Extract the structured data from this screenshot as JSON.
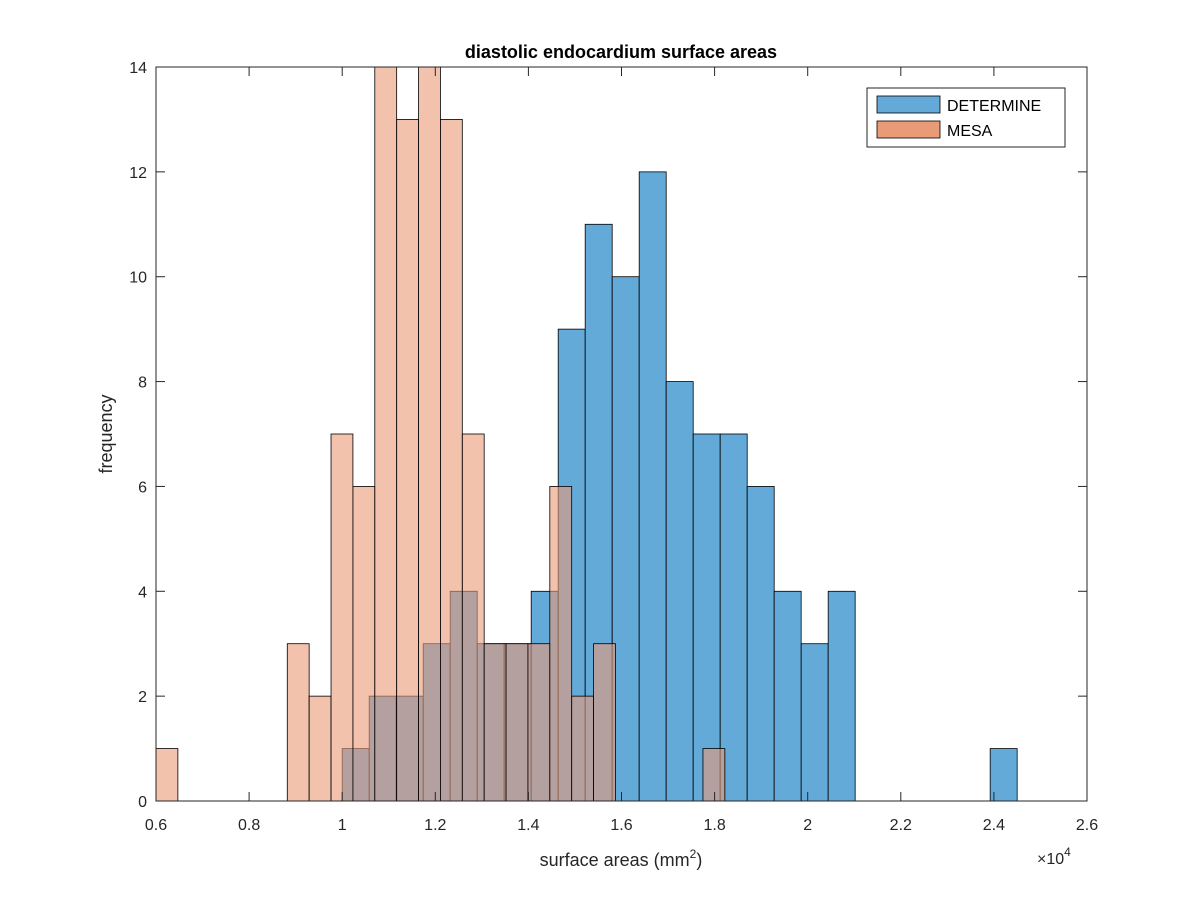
{
  "chart_data": {
    "type": "bar",
    "title": "diastolic endocardium surface areas",
    "xlabel": "surface areas (mm",
    "xlabel_sup": "2",
    "xlabel_close": ")",
    "ylabel": "frequency",
    "x_exponent_label": "×10",
    "x_exponent_power": "4",
    "xlim": [
      0.6,
      2.6
    ],
    "ylim": [
      0,
      14
    ],
    "xticks": [
      0.6,
      0.8,
      1,
      1.2,
      1.4,
      1.6,
      1.8,
      2,
      2.2,
      2.4,
      2.6
    ],
    "xtick_labels": [
      "0.6",
      "0.8",
      "1",
      "1.2",
      "1.4",
      "1.6",
      "1.8",
      "2",
      "2.2",
      "2.4",
      "2.6"
    ],
    "yticks": [
      0,
      2,
      4,
      6,
      8,
      10,
      12,
      14
    ],
    "ytick_labels": [
      "0",
      "2",
      "4",
      "6",
      "8",
      "10",
      "12",
      "14"
    ],
    "grid": false,
    "legend_position": "top-right",
    "series": [
      {
        "name": "DETERMINE",
        "color": "#0072BD",
        "face_color": "#64aad9",
        "bin_edges": [
          1.0,
          1.058,
          1.116,
          1.174,
          1.232,
          1.29,
          1.348,
          1.406,
          1.464,
          1.522,
          1.58,
          1.638,
          1.696,
          1.754,
          1.812,
          1.87,
          1.928,
          1.986,
          2.044,
          2.102,
          2.16,
          2.218,
          2.276,
          2.334,
          2.392,
          2.45
        ],
        "counts": [
          1,
          2,
          2,
          3,
          4,
          3,
          3,
          4,
          9,
          11,
          10,
          12,
          8,
          7,
          7,
          6,
          4,
          3,
          4,
          0,
          0,
          0,
          0,
          0,
          1
        ]
      },
      {
        "name": "MESA",
        "color": "#D95319",
        "face_color": "#e99a77",
        "bin_edges": [
          0.6,
          0.647,
          0.694,
          0.741,
          0.788,
          0.835,
          0.882,
          0.929,
          0.976,
          1.023,
          1.07,
          1.117,
          1.164,
          1.211,
          1.258,
          1.305,
          1.352,
          1.399,
          1.446,
          1.493,
          1.54,
          1.587,
          1.634,
          1.681,
          1.728,
          1.775,
          1.822
        ],
        "counts": [
          1,
          0,
          0,
          0,
          0,
          0,
          3,
          2,
          7,
          6,
          14,
          13,
          14,
          13,
          7,
          3,
          3,
          3,
          6,
          2,
          3,
          0,
          0,
          0,
          0,
          1
        ]
      }
    ]
  }
}
